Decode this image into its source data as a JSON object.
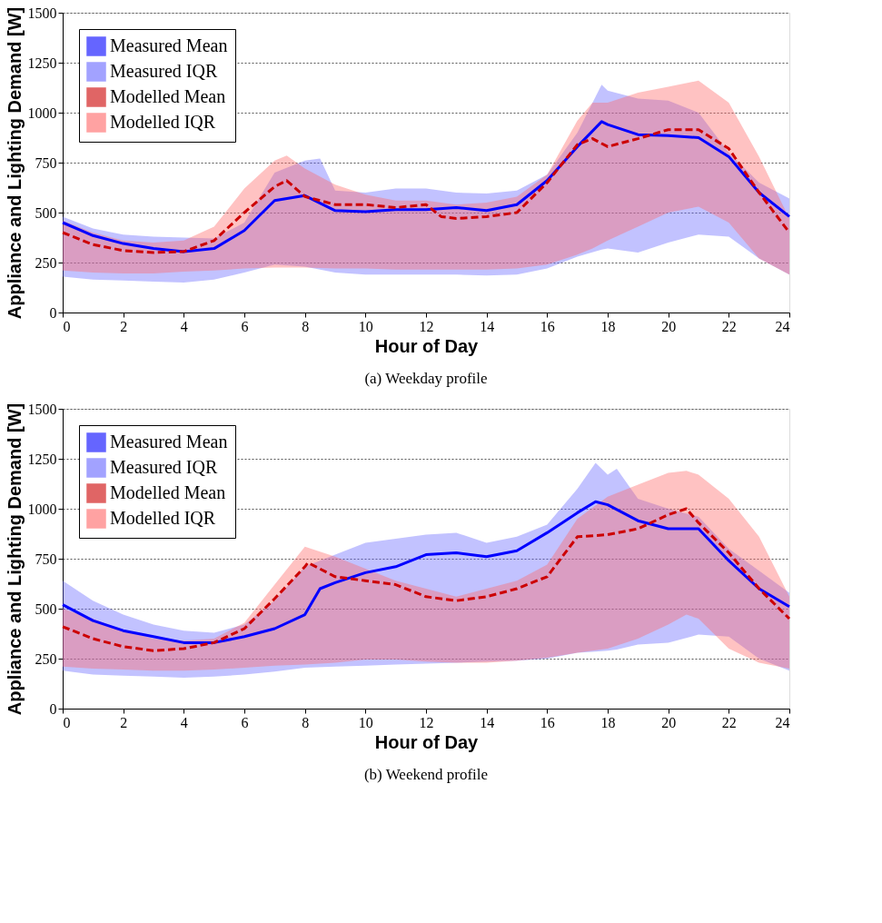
{
  "chart_data": [
    {
      "type": "line",
      "title": "(a)  Weekday profile",
      "xlabel": "Hour of Day",
      "ylabel": "Appliance and Lighting Demand [W]",
      "xlim": [
        0,
        24
      ],
      "xticks": [
        0,
        2,
        4,
        6,
        8,
        10,
        12,
        14,
        16,
        18,
        20,
        22,
        24
      ],
      "ylim": [
        0,
        1500
      ],
      "yticks": [
        0,
        250,
        500,
        750,
        1000,
        1250,
        1500
      ],
      "grid": "y",
      "legend": "top left",
      "series": [
        {
          "name": "Measured Mean",
          "type": "line",
          "color": "#0000ff",
          "line_style": "solid",
          "x": [
            0,
            1,
            2,
            3,
            4,
            5,
            6,
            7,
            8,
            9,
            10,
            11,
            12,
            13,
            14,
            15,
            16,
            17,
            17.8,
            18,
            19,
            20,
            21,
            22,
            23,
            24
          ],
          "values": [
            450,
            385,
            345,
            320,
            305,
            320,
            410,
            560,
            585,
            510,
            505,
            515,
            515,
            525,
            510,
            540,
            660,
            830,
            955,
            940,
            890,
            885,
            875,
            780,
            600,
            480
          ]
        },
        {
          "name": "Measured IQR",
          "type": "area",
          "color": "#6666ff",
          "x": [
            0,
            1,
            2,
            3,
            4,
            5,
            6,
            7,
            8,
            8.5,
            9,
            10,
            11,
            12,
            13,
            14,
            15,
            16,
            17,
            17.8,
            18,
            19,
            20,
            21,
            22,
            23,
            24
          ],
          "values": [
            null,
            null,
            null,
            null,
            null,
            null,
            null,
            null,
            null,
            null,
            null,
            null,
            null,
            null,
            null,
            null,
            null,
            null,
            null,
            null,
            null,
            null,
            null,
            null,
            null,
            null,
            null
          ],
          "lower": [
            180,
            165,
            160,
            155,
            150,
            165,
            200,
            240,
            230,
            215,
            200,
            190,
            190,
            190,
            190,
            185,
            190,
            220,
            280,
            315,
            320,
            300,
            350,
            390,
            380,
            270,
            190
          ],
          "upper": [
            480,
            420,
            390,
            380,
            375,
            370,
            450,
            700,
            760,
            770,
            610,
            600,
            620,
            620,
            600,
            595,
            610,
            690,
            900,
            1140,
            1110,
            1070,
            1060,
            1000,
            800,
            650,
            570
          ]
        },
        {
          "name": "Modelled Mean",
          "type": "line",
          "color": "#cc0000",
          "line_style": "dashed",
          "x": [
            0,
            1,
            2,
            3,
            4,
            5,
            6,
            7,
            7.4,
            8,
            9,
            10,
            11,
            12,
            12.5,
            13,
            14,
            15,
            16,
            17,
            17.5,
            18,
            19,
            20,
            21,
            22,
            23,
            24
          ],
          "values": [
            400,
            340,
            310,
            300,
            305,
            360,
            500,
            630,
            660,
            580,
            540,
            540,
            525,
            540,
            480,
            470,
            480,
            500,
            650,
            840,
            870,
            830,
            870,
            915,
            915,
            820,
            600,
            400
          ]
        },
        {
          "name": "Modelled IQR",
          "type": "area",
          "color": "#ff6666",
          "x": [
            0,
            1,
            2,
            3,
            4,
            5,
            6,
            7,
            7.4,
            8,
            9,
            10,
            11,
            12,
            13,
            14,
            15,
            16,
            17,
            17.5,
            18,
            19,
            20,
            21,
            22,
            23,
            24
          ],
          "values": [
            null,
            null,
            null,
            null,
            null,
            null,
            null,
            null,
            null,
            null,
            null,
            null,
            null,
            null,
            null,
            null,
            null,
            null,
            null,
            null,
            null,
            null,
            null,
            null,
            null,
            null,
            null
          ],
          "lower": [
            210,
            200,
            195,
            195,
            205,
            210,
            220,
            225,
            225,
            225,
            220,
            220,
            215,
            215,
            215,
            215,
            220,
            240,
            290,
            320,
            360,
            430,
            500,
            530,
            450,
            270,
            190
          ],
          "upper": [
            460,
            400,
            360,
            350,
            360,
            430,
            620,
            760,
            785,
            720,
            640,
            590,
            560,
            560,
            540,
            550,
            580,
            690,
            960,
            1050,
            1050,
            1100,
            1130,
            1160,
            1050,
            780,
            470
          ]
        }
      ]
    },
    {
      "type": "line",
      "title": "(b)  Weekend profile",
      "xlabel": "Hour of Day",
      "ylabel": "Appliance and Lighting Demand [W]",
      "xlim": [
        0,
        24
      ],
      "xticks": [
        0,
        2,
        4,
        6,
        8,
        10,
        12,
        14,
        16,
        18,
        20,
        22,
        24
      ],
      "ylim": [
        0,
        1500
      ],
      "yticks": [
        0,
        250,
        500,
        750,
        1000,
        1250,
        1500
      ],
      "grid": "y",
      "legend": "top left",
      "series": [
        {
          "name": "Measured Mean",
          "type": "line",
          "color": "#0000ff",
          "line_style": "solid",
          "x": [
            0,
            1,
            2,
            3,
            4,
            5,
            6,
            7,
            8,
            8.5,
            9,
            10,
            11,
            12,
            13,
            14,
            15,
            16,
            17,
            17.6,
            18,
            19,
            20,
            21,
            22,
            23,
            24
          ],
          "values": [
            520,
            440,
            390,
            360,
            330,
            330,
            360,
            400,
            470,
            600,
            630,
            680,
            710,
            770,
            780,
            760,
            790,
            880,
            980,
            1035,
            1020,
            940,
            900,
            900,
            740,
            600,
            510
          ]
        },
        {
          "name": "Measured IQR",
          "type": "area",
          "color": "#6666ff",
          "x": [
            0,
            1,
            2,
            3,
            4,
            5,
            6,
            7,
            8,
            9,
            10,
            11,
            12,
            13,
            14,
            15,
            16,
            17,
            17.6,
            18,
            18.3,
            19,
            20,
            21,
            22,
            23,
            24
          ],
          "values": [
            null,
            null,
            null,
            null,
            null,
            null,
            null,
            null,
            null,
            null,
            null,
            null,
            null,
            null,
            null,
            null,
            null,
            null,
            null,
            null,
            null,
            null,
            null,
            null,
            null,
            null,
            null
          ],
          "lower": [
            190,
            170,
            165,
            160,
            155,
            160,
            170,
            185,
            205,
            210,
            215,
            220,
            225,
            230,
            235,
            240,
            250,
            280,
            285,
            290,
            295,
            320,
            330,
            370,
            360,
            250,
            190
          ],
          "upper": [
            640,
            540,
            470,
            420,
            390,
            380,
            420,
            540,
            710,
            770,
            830,
            850,
            870,
            880,
            830,
            860,
            920,
            1100,
            1230,
            1170,
            1200,
            1050,
            1000,
            960,
            800,
            690,
            580
          ]
        },
        {
          "name": "Modelled Mean",
          "type": "line",
          "color": "#cc0000",
          "line_style": "dashed",
          "x": [
            0,
            1,
            2,
            3,
            4,
            5,
            6,
            7,
            8,
            8.1,
            9,
            10,
            11,
            12,
            13,
            14,
            15,
            16,
            17,
            18,
            19,
            20,
            20.6,
            21,
            22,
            23,
            24
          ],
          "values": [
            410,
            350,
            310,
            290,
            300,
            330,
            400,
            550,
            710,
            730,
            660,
            640,
            620,
            560,
            540,
            560,
            600,
            660,
            860,
            870,
            900,
            970,
            1000,
            930,
            780,
            600,
            450
          ]
        },
        {
          "name": "Modelled IQR",
          "type": "area",
          "color": "#ff6666",
          "x": [
            0,
            1,
            2,
            3,
            4,
            5,
            6,
            7,
            8,
            9,
            10,
            11,
            12,
            13,
            14,
            15,
            16,
            17,
            18,
            19,
            20,
            20.6,
            21,
            22,
            23,
            24
          ],
          "values": [
            null,
            null,
            null,
            null,
            null,
            null,
            null,
            null,
            null,
            null,
            null,
            null,
            null,
            null,
            null,
            null,
            null,
            null,
            null,
            null,
            null,
            null,
            null,
            null,
            null,
            null
          ],
          "lower": [
            210,
            200,
            195,
            190,
            190,
            195,
            205,
            215,
            220,
            230,
            245,
            245,
            235,
            230,
            230,
            240,
            255,
            280,
            300,
            350,
            420,
            470,
            450,
            300,
            230,
            200
          ],
          "upper": [
            500,
            450,
            390,
            350,
            340,
            350,
            430,
            620,
            810,
            760,
            700,
            640,
            600,
            560,
            600,
            640,
            720,
            950,
            1060,
            1120,
            1180,
            1190,
            1170,
            1050,
            860,
            560
          ]
        }
      ]
    }
  ]
}
